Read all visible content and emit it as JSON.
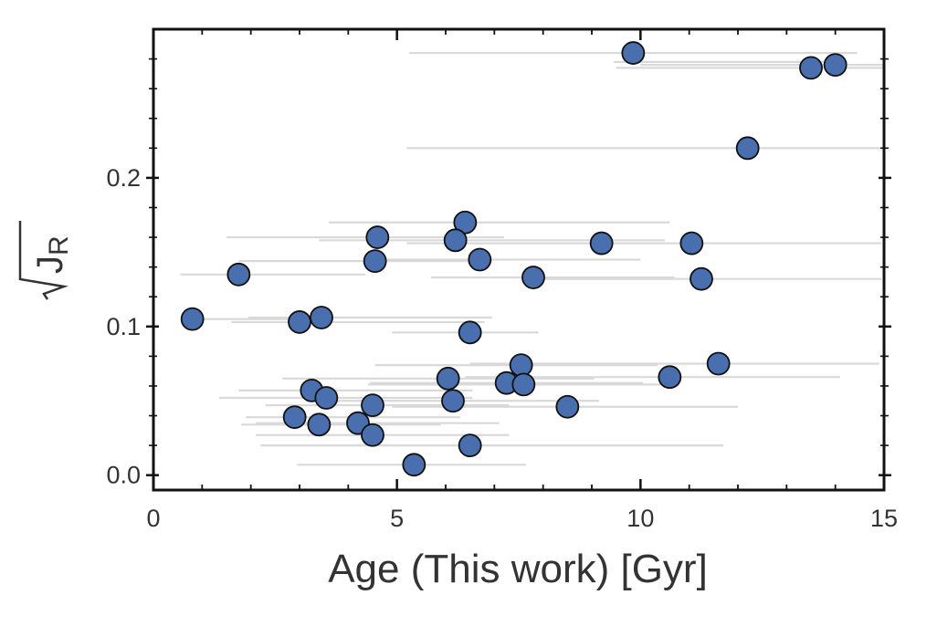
{
  "chart_data": {
    "type": "scatter",
    "title": "",
    "xlabel": "Age (This work) [Gyr]",
    "ylabel_main": "J",
    "ylabel_sub": "R",
    "ylabel_note": "square root of J_R",
    "xlim": [
      0,
      15
    ],
    "ylim": [
      -0.01,
      0.3
    ],
    "xticks": [
      0,
      5,
      10,
      15
    ],
    "xtick_labels": [
      "0",
      "5",
      "10",
      "15"
    ],
    "yticks": [
      0.0,
      0.1,
      0.2
    ],
    "ytick_labels": [
      "0.0",
      "0.1",
      "0.2"
    ],
    "grid": false,
    "legend": "none",
    "marker_color": "#4a6fae",
    "marker_edge_color": "#111111",
    "errorbar_color": "#d9d9d9",
    "points": [
      {
        "x": 9.85,
        "y": 0.284,
        "xerr_low": 4.6,
        "xerr_high": 4.6
      },
      {
        "x": 9.85,
        "y": 0.278,
        "xerr_low": 0.4,
        "xerr_high": 4.4,
        "hidden": true
      },
      {
        "x": 13.5,
        "y": 0.274,
        "xerr_low": 4.0,
        "xerr_high": 1.5
      },
      {
        "x": 14.0,
        "y": 0.276,
        "xerr_low": 4.0,
        "xerr_high": 1.0
      },
      {
        "x": 12.2,
        "y": 0.22,
        "xerr_low": 7.0,
        "xerr_high": 2.8
      },
      {
        "x": 6.4,
        "y": 0.17,
        "xerr_low": 2.8,
        "xerr_high": 4.2
      },
      {
        "x": 4.6,
        "y": 0.16,
        "xerr_low": 3.1,
        "xerr_high": 2.6
      },
      {
        "x": 6.2,
        "y": 0.158,
        "xerr_low": 2.8,
        "xerr_high": 4.3
      },
      {
        "x": 9.2,
        "y": 0.156,
        "xerr_low": 4.0,
        "xerr_high": 3.2
      },
      {
        "x": 11.05,
        "y": 0.156,
        "xerr_low": 4.7,
        "xerr_high": 3.9
      },
      {
        "x": 4.55,
        "y": 0.144,
        "xerr_low": 2.8,
        "xerr_high": 2.4
      },
      {
        "x": 6.7,
        "y": 0.145,
        "xerr_low": 2.2,
        "xerr_high": 3.3
      },
      {
        "x": 1.75,
        "y": 0.135,
        "xerr_low": 1.2,
        "xerr_high": 2.6
      },
      {
        "x": 7.8,
        "y": 0.133,
        "xerr_low": 2.1,
        "xerr_high": 2.9
      },
      {
        "x": 11.25,
        "y": 0.132,
        "xerr_low": 3.6,
        "xerr_high": 3.7
      },
      {
        "x": 0.8,
        "y": 0.105,
        "xerr_low": 0.2,
        "xerr_high": 2.8
      },
      {
        "x": 3.0,
        "y": 0.103,
        "xerr_low": 1.4,
        "xerr_high": 3.8
      },
      {
        "x": 3.45,
        "y": 0.106,
        "xerr_low": 1.5,
        "xerr_high": 3.5
      },
      {
        "x": 6.5,
        "y": 0.096,
        "xerr_low": 1.6,
        "xerr_high": 1.4
      },
      {
        "x": 7.55,
        "y": 0.074,
        "xerr_low": 3.0,
        "xerr_high": 2.8
      },
      {
        "x": 11.6,
        "y": 0.075,
        "xerr_low": 5.1,
        "xerr_high": 3.3
      },
      {
        "x": 10.6,
        "y": 0.066,
        "xerr_low": 4.2,
        "xerr_high": 3.5
      },
      {
        "x": 6.05,
        "y": 0.065,
        "xerr_low": 3.4,
        "xerr_high": 3.0
      },
      {
        "x": 7.25,
        "y": 0.062,
        "xerr_low": 2.8,
        "xerr_high": 2.8
      },
      {
        "x": 7.6,
        "y": 0.061,
        "xerr_low": 3.2,
        "xerr_high": 2.9
      },
      {
        "x": 3.25,
        "y": 0.057,
        "xerr_low": 1.5,
        "xerr_high": 3.3
      },
      {
        "x": 3.55,
        "y": 0.052,
        "xerr_low": 2.2,
        "xerr_high": 3.0
      },
      {
        "x": 6.15,
        "y": 0.05,
        "xerr_low": 2.7,
        "xerr_high": 3.0
      },
      {
        "x": 4.5,
        "y": 0.047,
        "xerr_low": 2.2,
        "xerr_high": 2.8
      },
      {
        "x": 8.5,
        "y": 0.046,
        "xerr_low": 3.6,
        "xerr_high": 3.5
      },
      {
        "x": 2.9,
        "y": 0.039,
        "xerr_low": 1.0,
        "xerr_high": 3.4
      },
      {
        "x": 3.4,
        "y": 0.034,
        "xerr_low": 1.6,
        "xerr_high": 2.5
      },
      {
        "x": 4.2,
        "y": 0.035,
        "xerr_low": 2.1,
        "xerr_high": 2.9
      },
      {
        "x": 4.5,
        "y": 0.027,
        "xerr_low": 2.4,
        "xerr_high": 2.8
      },
      {
        "x": 6.5,
        "y": 0.02,
        "xerr_low": 4.3,
        "xerr_high": 5.2
      },
      {
        "x": 5.35,
        "y": 0.007,
        "xerr_low": 2.4,
        "xerr_high": 2.3
      }
    ]
  }
}
